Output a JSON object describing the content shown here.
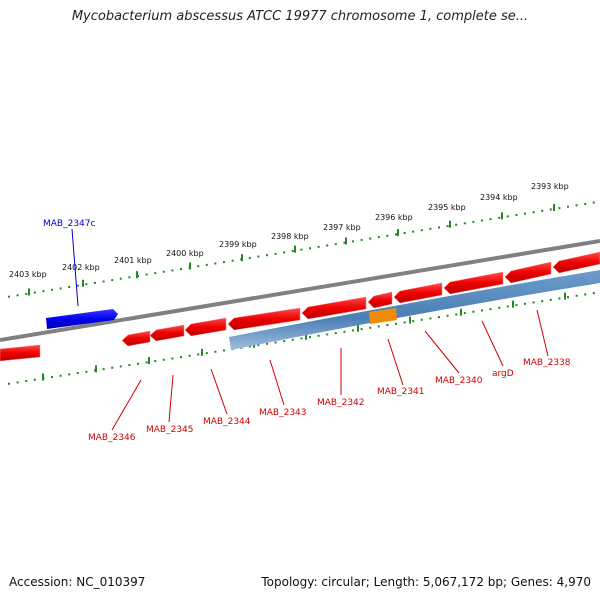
{
  "title": "Mycobacterium abscessus ATCC 19977 chromosome 1, complete se...",
  "footer": {
    "accession": "Accession: NC_010397",
    "summary": "Topology: circular; Length: 5,067,172 bp; Genes: 4,970"
  },
  "colors": {
    "forward_gene": "#ee0000",
    "reverse_gene": "#0000ee",
    "operon": "#4a7fb5",
    "highlight": "#f08c00",
    "tick": "#228822",
    "backbone": "#808080",
    "label_forward": "#d00000",
    "label_reverse": "#0000cc"
  },
  "scale_labels": [
    "2403 kbp",
    "2402 kbp",
    "2401 kbp",
    "2400 kbp",
    "2399 kbp",
    "2398 kbp",
    "2397 kbp",
    "2396 kbp",
    "2395 kbp",
    "2394 kbp",
    "2393 kbp"
  ],
  "gene_labels_bottom": [
    "MAB_2346",
    "MAB_2345",
    "MAB_2344",
    "MAB_2343",
    "MAB_2342",
    "MAB_2341",
    "MAB_2340",
    "argD",
    "MAB_2338"
  ],
  "gene_label_top": "MAB_2347c"
}
